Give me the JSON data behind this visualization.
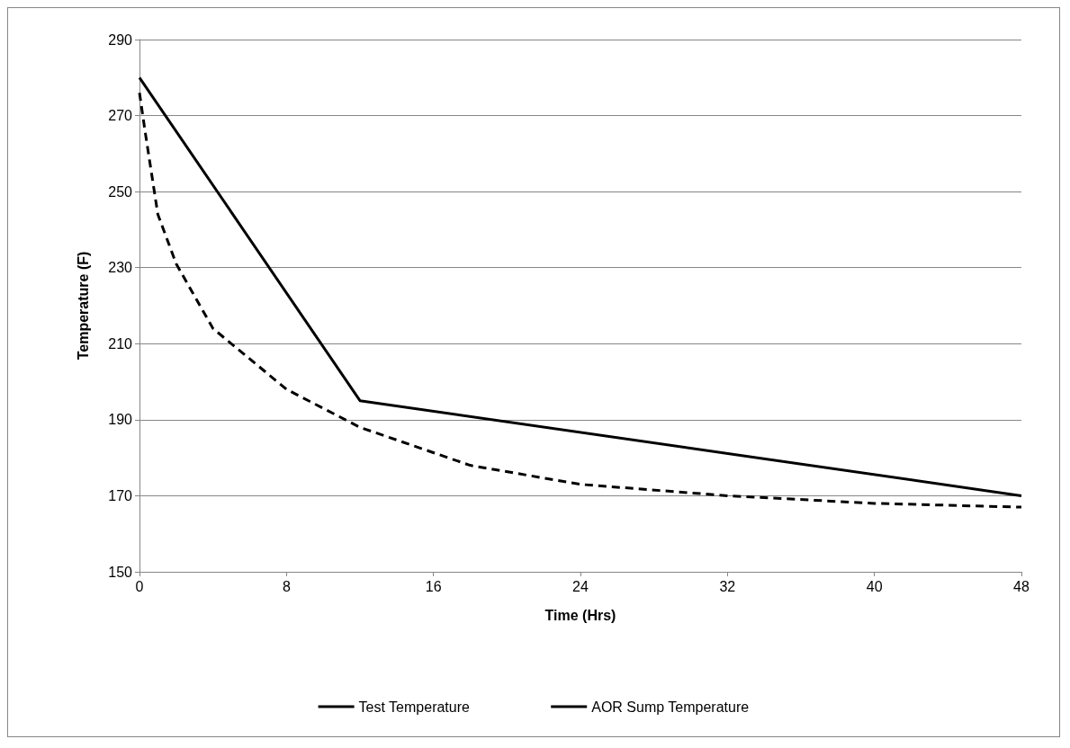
{
  "chart_data": {
    "type": "line",
    "xlabel": "Time (Hrs)",
    "ylabel": "Temperature (F)",
    "xlim": [
      0,
      48
    ],
    "xticks": [
      0,
      8,
      16,
      24,
      32,
      40,
      48
    ],
    "ylim": [
      150,
      290
    ],
    "yticks": [
      150,
      170,
      190,
      210,
      230,
      250,
      270,
      290
    ],
    "grid": "y",
    "legend": "bottom",
    "marker": "none",
    "series": [
      {
        "name": "Test Temperature",
        "color": "#000000",
        "line_style": "solid",
        "x": [
          0,
          12,
          48
        ],
        "values": [
          280,
          195,
          170
        ]
      },
      {
        "name": "AOR Sump Temperature",
        "color": "#000000",
        "line_style": "dashed",
        "x": [
          0,
          0.3,
          1,
          2,
          4,
          8,
          12,
          18,
          24,
          32,
          40,
          48
        ],
        "values": [
          276,
          266,
          244,
          231,
          214,
          198,
          188,
          178,
          173,
          170,
          168,
          167
        ]
      }
    ]
  }
}
